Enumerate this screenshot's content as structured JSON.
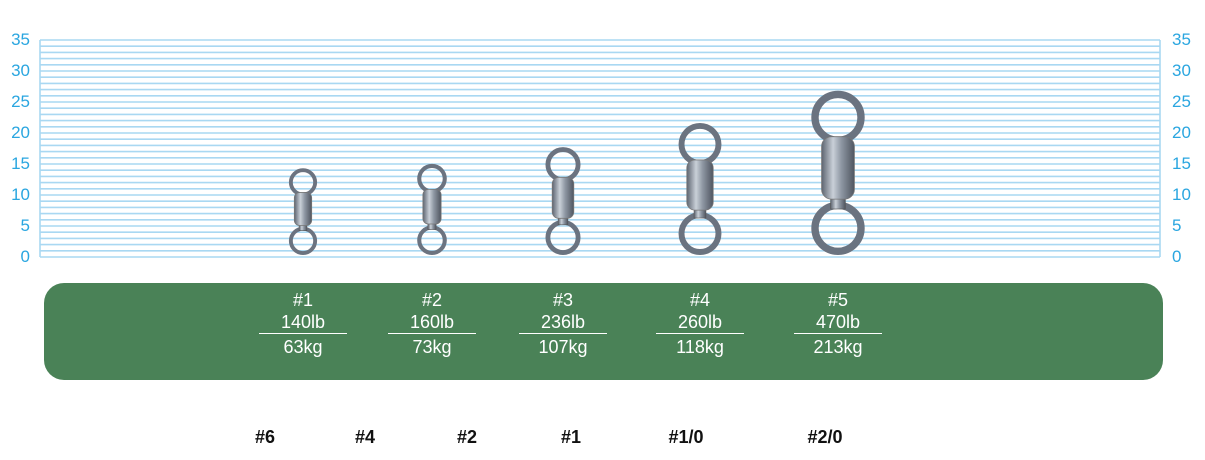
{
  "scale": {
    "unit_ticks": [
      "0",
      "5",
      "10",
      "15",
      "20",
      "25",
      "30",
      "35"
    ],
    "min": 0,
    "max": 35,
    "grid_color": "#a9d8f2",
    "tick_color": "#2aa6e0"
  },
  "products": [
    {
      "size": "#1",
      "lb": "140lb",
      "kg": "63kg",
      "length_mm": 14
    },
    {
      "size": "#2",
      "lb": "160lb",
      "kg": "73kg",
      "length_mm": 14.7
    },
    {
      "size": "#3",
      "lb": "236lb",
      "kg": "107kg",
      "length_mm": 17.4
    },
    {
      "size": "#4",
      "lb": "260lb",
      "kg": "118kg",
      "length_mm": 21.3
    },
    {
      "size": "#5",
      "lb": "470lb",
      "kg": "213kg",
      "length_mm": 26.5
    }
  ],
  "panel_color": "#4a8257",
  "equivalent_sizes": [
    "#6",
    "#4",
    "#2",
    "#1",
    "#1/0",
    "#2/0"
  ]
}
